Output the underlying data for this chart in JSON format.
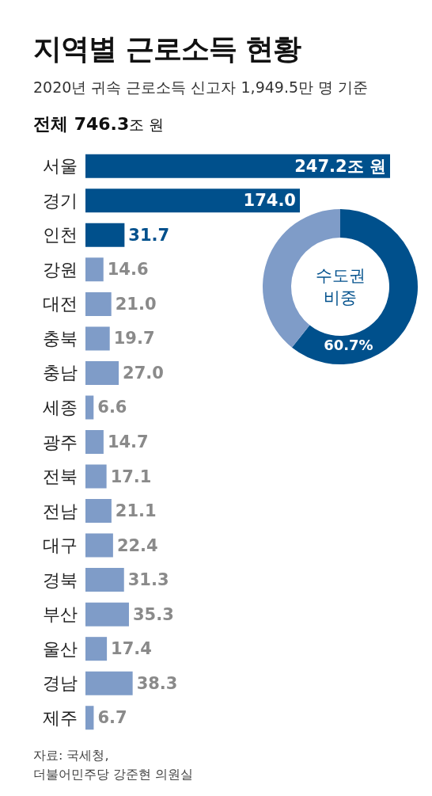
{
  "chart_data": [
    {
      "type": "bar",
      "orientation": "horizontal",
      "title": "지역별 근로소득 현황",
      "subtitle": "2020년 귀속 근로소득 신고자 1,949.5만 명 기준",
      "annotations": [
        "전체 746.3조 원",
        "자료: 국세청,\n더불어민주당 강준현 의원실"
      ],
      "categories": [
        "서울",
        "경기",
        "인천",
        "강원",
        "대전",
        "충북",
        "충남",
        "세종",
        "광주",
        "전북",
        "전남",
        "대구",
        "경북",
        "부산",
        "울산",
        "경남",
        "제주"
      ],
      "values": [
        247.2,
        174.0,
        31.7,
        14.6,
        21.0,
        19.7,
        27.0,
        6.6,
        14.7,
        17.1,
        21.1,
        22.4,
        31.3,
        35.3,
        17.4,
        38.3,
        6.7
      ],
      "colors": [
        "#00508c",
        "#00508c",
        "#00508c",
        "#7f9cc8",
        "#7f9cc8",
        "#7f9cc8",
        "#7f9cc8",
        "#7f9cc8",
        "#7f9cc8",
        "#7f9cc8",
        "#7f9cc8",
        "#7f9cc8",
        "#7f9cc8",
        "#7f9cc8",
        "#7f9cc8",
        "#7f9cc8",
        "#7f9cc8"
      ],
      "value_labels": [
        "247.2조 원",
        "174.0",
        "31.7",
        "14.6",
        "21.0",
        "19.7",
        "27.0",
        "6.6",
        "14.7",
        "17.1",
        "21.1",
        "22.4",
        "31.3",
        "35.3",
        "17.4",
        "38.3",
        "6.7"
      ]
    },
    {
      "type": "donut",
      "title": "수도권\n비중",
      "categories": [
        null,
        null
      ],
      "values": [
        60.7,
        39.3
      ],
      "colors": [
        "#00508c",
        "#7f9cc8"
      ],
      "value_labels": [
        "60.7%",
        null
      ]
    }
  ]
}
